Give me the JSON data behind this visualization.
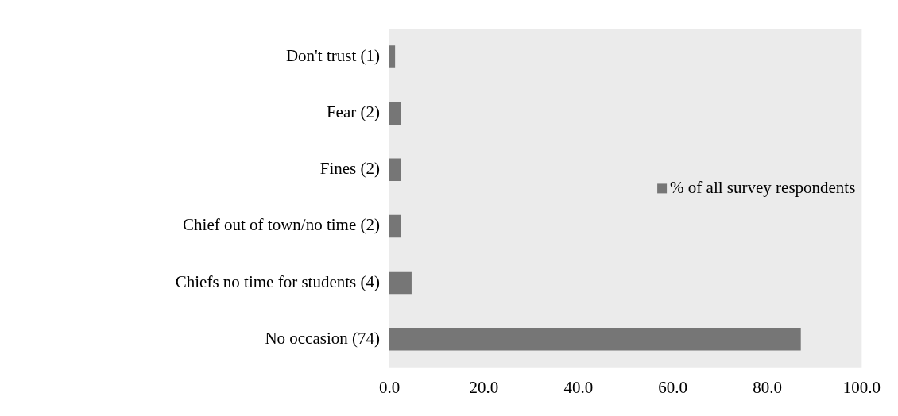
{
  "chart_data": {
    "type": "bar",
    "orientation": "horizontal",
    "categories": [
      "Don't trust (1)",
      "Fear (2)",
      "Fines (2)",
      "Chief out of town/no time (2)",
      "Chiefs no time for students (4)",
      "No occasion (74)"
    ],
    "series": [
      {
        "name": "% of all survey respondents",
        "color": "#767676",
        "values": [
          1.2,
          2.4,
          2.4,
          2.4,
          4.7,
          87.1
        ]
      }
    ],
    "xlim": [
      0,
      100
    ],
    "xticks": [
      {
        "value": 0,
        "label": "0.0"
      },
      {
        "value": 20,
        "label": "20.0"
      },
      {
        "value": 40,
        "label": "40.0"
      },
      {
        "value": 60,
        "label": "60.0"
      },
      {
        "value": 80,
        "label": "80.0"
      },
      {
        "value": 100,
        "label": "100.0"
      }
    ],
    "grid": false,
    "legend": "right"
  }
}
